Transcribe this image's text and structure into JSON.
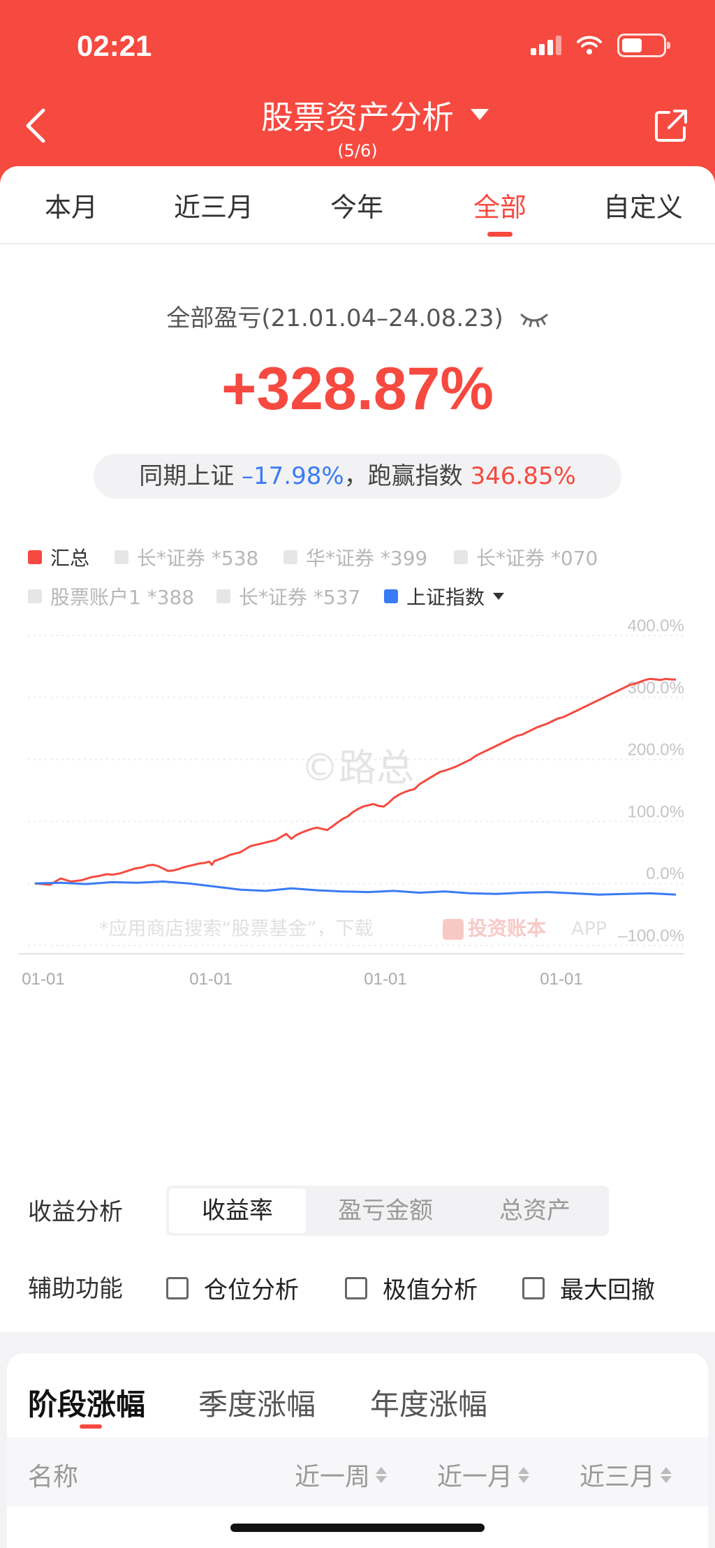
{
  "status_bar": {
    "time": "02:21"
  },
  "header": {
    "title": "股票资产分析",
    "subtitle": "(5/6)"
  },
  "tabs": [
    {
      "label": "本月",
      "active": false
    },
    {
      "label": "近三月",
      "active": false
    },
    {
      "label": "今年",
      "active": false
    },
    {
      "label": "全部",
      "active": true
    },
    {
      "label": "自定义",
      "active": false
    }
  ],
  "summary": {
    "period_label": "全部盈亏(21.01.04–24.08.23)",
    "total_return": "+328.87%",
    "compare_prefix": "同期上证",
    "index_return": "–17.98%",
    "compare_mid": "，跑赢指数",
    "outperform": "346.85%"
  },
  "legend": [
    {
      "label": "汇总",
      "active": true,
      "color": "#f6493f"
    },
    {
      "label": "长*证券 *538",
      "active": false,
      "color": "#e6e6e6"
    },
    {
      "label": "华*证券 *399",
      "active": false,
      "color": "#e6e6e6"
    },
    {
      "label": "长*证券 *070",
      "active": false,
      "color": "#e6e6e6"
    },
    {
      "label": "股票账户1 *388",
      "active": false,
      "color": "#e6e6e6"
    },
    {
      "label": "长*证券 *537",
      "active": false,
      "color": "#e6e6e6"
    },
    {
      "label": "上证指数",
      "active": true,
      "color": "#3a7bf5"
    }
  ],
  "chart_data": {
    "type": "line",
    "y_ticks": [
      "400.0%",
      "300.0%",
      "200.0%",
      "100.0%",
      "0.0%",
      "–100.0%"
    ],
    "x_ticks": [
      "01-01",
      "01-01",
      "01-01",
      "01-01"
    ],
    "ylim": [
      -100,
      400
    ],
    "watermark": "©路总",
    "footer_text": "*应用商店搜索“股票基金”，下载",
    "footer_brand": "投资账本",
    "footer_suffix": "APP",
    "series": [
      {
        "name": "汇总",
        "color": "#f6493f",
        "points": [
          [
            0,
            0
          ],
          [
            6,
            -2
          ],
          [
            10,
            8
          ],
          [
            14,
            3
          ],
          [
            18,
            5
          ],
          [
            22,
            10
          ],
          [
            25,
            12
          ],
          [
            28,
            15
          ],
          [
            30,
            14
          ],
          [
            33,
            16
          ],
          [
            36,
            20
          ],
          [
            39,
            24
          ],
          [
            42,
            26
          ],
          [
            44,
            29
          ],
          [
            46,
            30
          ],
          [
            48,
            28
          ],
          [
            50,
            24
          ],
          [
            52,
            20
          ],
          [
            54,
            21
          ],
          [
            56,
            23
          ],
          [
            58,
            26
          ],
          [
            60,
            28
          ],
          [
            62,
            30
          ],
          [
            64,
            32
          ],
          [
            66,
            33
          ],
          [
            68,
            35
          ],
          [
            69,
            30
          ],
          [
            70,
            36
          ],
          [
            72,
            39
          ],
          [
            74,
            42
          ],
          [
            76,
            46
          ],
          [
            78,
            48
          ],
          [
            80,
            50
          ],
          [
            82,
            55
          ],
          [
            84,
            60
          ],
          [
            86,
            62
          ],
          [
            88,
            64
          ],
          [
            90,
            66
          ],
          [
            92,
            68
          ],
          [
            94,
            70
          ],
          [
            96,
            75
          ],
          [
            98,
            80
          ],
          [
            100,
            72
          ],
          [
            102,
            78
          ],
          [
            104,
            82
          ],
          [
            106,
            85
          ],
          [
            108,
            88
          ],
          [
            110,
            90
          ],
          [
            112,
            88
          ],
          [
            114,
            86
          ],
          [
            116,
            92
          ],
          [
            118,
            98
          ],
          [
            120,
            104
          ],
          [
            122,
            108
          ],
          [
            124,
            115
          ],
          [
            126,
            120
          ],
          [
            128,
            124
          ],
          [
            130,
            126
          ],
          [
            132,
            128
          ],
          [
            134,
            125
          ],
          [
            136,
            124
          ],
          [
            138,
            130
          ],
          [
            140,
            138
          ],
          [
            142,
            143
          ],
          [
            144,
            147
          ],
          [
            146,
            150
          ],
          [
            148,
            152
          ],
          [
            150,
            160
          ],
          [
            152,
            165
          ],
          [
            154,
            170
          ],
          [
            156,
            175
          ],
          [
            158,
            180
          ],
          [
            160,
            182
          ],
          [
            162,
            185
          ],
          [
            164,
            188
          ],
          [
            166,
            192
          ],
          [
            168,
            196
          ],
          [
            170,
            200
          ],
          [
            172,
            206
          ],
          [
            174,
            210
          ],
          [
            176,
            214
          ],
          [
            178,
            218
          ],
          [
            180,
            222
          ],
          [
            182,
            226
          ],
          [
            184,
            230
          ],
          [
            186,
            234
          ],
          [
            188,
            238
          ],
          [
            190,
            240
          ],
          [
            192,
            244
          ],
          [
            194,
            248
          ],
          [
            196,
            252
          ],
          [
            198,
            255
          ],
          [
            200,
            258
          ],
          [
            202,
            262
          ],
          [
            204,
            266
          ],
          [
            206,
            268
          ],
          [
            208,
            272
          ],
          [
            210,
            276
          ],
          [
            212,
            280
          ],
          [
            214,
            284
          ],
          [
            216,
            288
          ],
          [
            218,
            292
          ],
          [
            220,
            296
          ],
          [
            222,
            300
          ],
          [
            224,
            304
          ],
          [
            226,
            308
          ],
          [
            228,
            312
          ],
          [
            230,
            316
          ],
          [
            232,
            320
          ],
          [
            234,
            322
          ],
          [
            236,
            325
          ],
          [
            238,
            328
          ],
          [
            240,
            330
          ],
          [
            242,
            329
          ],
          [
            244,
            328
          ],
          [
            246,
            330
          ],
          [
            248,
            329
          ],
          [
            250,
            328.87
          ]
        ]
      },
      {
        "name": "上证指数",
        "color": "#3a7bf5",
        "points": [
          [
            0,
            0
          ],
          [
            10,
            1
          ],
          [
            20,
            -1
          ],
          [
            30,
            2
          ],
          [
            40,
            1
          ],
          [
            50,
            3
          ],
          [
            60,
            0
          ],
          [
            70,
            -5
          ],
          [
            80,
            -10
          ],
          [
            90,
            -12
          ],
          [
            100,
            -8
          ],
          [
            110,
            -11
          ],
          [
            120,
            -13
          ],
          [
            130,
            -14
          ],
          [
            140,
            -12
          ],
          [
            150,
            -15
          ],
          [
            160,
            -13
          ],
          [
            170,
            -16
          ],
          [
            180,
            -17
          ],
          [
            190,
            -15
          ],
          [
            200,
            -14
          ],
          [
            210,
            -16
          ],
          [
            220,
            -18
          ],
          [
            230,
            -17
          ],
          [
            240,
            -16
          ],
          [
            250,
            -17.98
          ]
        ]
      }
    ]
  },
  "analysis": {
    "label": "收益分析",
    "options": [
      "收益率",
      "盈亏金额",
      "总资产"
    ],
    "selected": "收益率"
  },
  "aux": {
    "label": "辅助功能",
    "options": [
      "仓位分析",
      "极值分析",
      "最大回撤"
    ]
  },
  "period_tabs": [
    "阶段涨幅",
    "季度涨幅",
    "年度涨幅"
  ],
  "table": {
    "headers": [
      "名称",
      "近一周",
      "近一月",
      "近三月"
    ]
  }
}
